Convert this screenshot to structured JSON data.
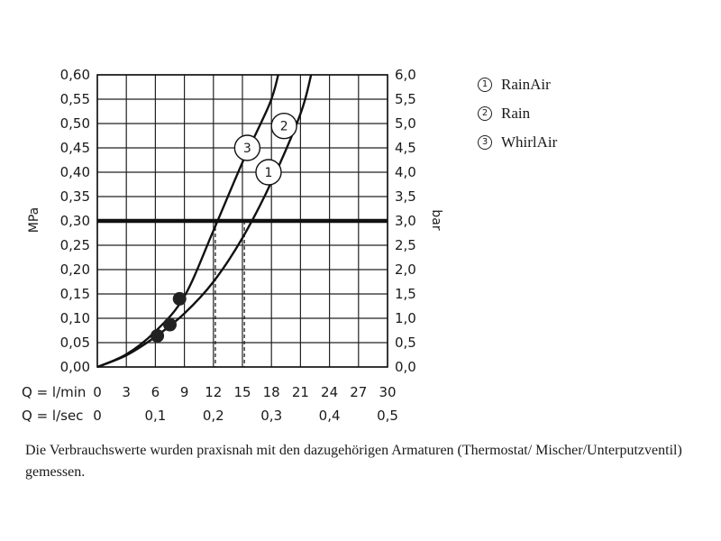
{
  "chart_data": {
    "type": "line",
    "x_label_lmin": "Q = l/min",
    "x_label_lsec": "Q = l/sec",
    "x_ticks_lmin": [
      "0",
      "3",
      "6",
      "9",
      "12",
      "15",
      "18",
      "21",
      "24",
      "27",
      "30"
    ],
    "x_ticks_lsec": [
      "0",
      "0,1",
      "0,2",
      "0,3",
      "0,4",
      "0,5"
    ],
    "ylabel_left": "MPa",
    "ylabel_right": "bar",
    "y_ticks_mpa": [
      "0,00",
      "0,05",
      "0,10",
      "0,15",
      "0,20",
      "0,25",
      "0,30",
      "0,35",
      "0,40",
      "0,45",
      "0,50",
      "0,55",
      "0,60"
    ],
    "y_ticks_bar": [
      "0,0",
      "0,5",
      "1,0",
      "1,5",
      "2,0",
      "2,5",
      "3,0",
      "3,5",
      "4,0",
      "4,5",
      "5,0",
      "5,5",
      "6,0"
    ],
    "xlim": [
      0,
      30
    ],
    "ylim": [
      0,
      0.6
    ],
    "grid": true,
    "reference_line_mpa": 0.3,
    "series": [
      {
        "name": "RainAir",
        "marker": "1",
        "x": [
          0,
          3,
          6,
          9,
          12,
          15,
          18,
          21,
          22.1
        ],
        "y": [
          0,
          0.024,
          0.062,
          0.11,
          0.175,
          0.265,
          0.38,
          0.52,
          0.6
        ]
      },
      {
        "name": "Rain",
        "marker": "2",
        "x": [
          0,
          3,
          6,
          9,
          12,
          15,
          18,
          21,
          22.1
        ],
        "y": [
          0,
          0.024,
          0.062,
          0.11,
          0.175,
          0.265,
          0.38,
          0.52,
          0.6
        ]
      },
      {
        "name": "WhirlAir",
        "marker": "3",
        "x": [
          0,
          3,
          6,
          9,
          12,
          15,
          17.8,
          18.7
        ],
        "y": [
          0,
          0.026,
          0.073,
          0.145,
          0.28,
          0.42,
          0.54,
          0.6
        ]
      }
    ],
    "operating_points": [
      {
        "series": "RainAir",
        "x": 7.5,
        "y": 0.087,
        "at_0_3_mpa_x": 15.2
      },
      {
        "series": "Rain",
        "x": 6.2,
        "y": 0.064
      },
      {
        "series": "WhirlAir",
        "x": 8.5,
        "y": 0.14,
        "at_0_3_mpa_x": 12.2
      }
    ],
    "curve_labels": [
      {
        "text": "1",
        "x": 17.7,
        "y": 0.4
      },
      {
        "text": "2",
        "x": 19.3,
        "y": 0.495
      },
      {
        "text": "3",
        "x": 15.5,
        "y": 0.45
      }
    ]
  },
  "legend": [
    {
      "num": "1",
      "label": "RainAir"
    },
    {
      "num": "2",
      "label": "Rain"
    },
    {
      "num": "3",
      "label": "WhirlAir"
    }
  ],
  "note": "Die Verbrauchswerte wurden praxisnah mit den dazugehörigen Armaturen (Thermostat/ Mischer/Unterputzventil) gemessen."
}
